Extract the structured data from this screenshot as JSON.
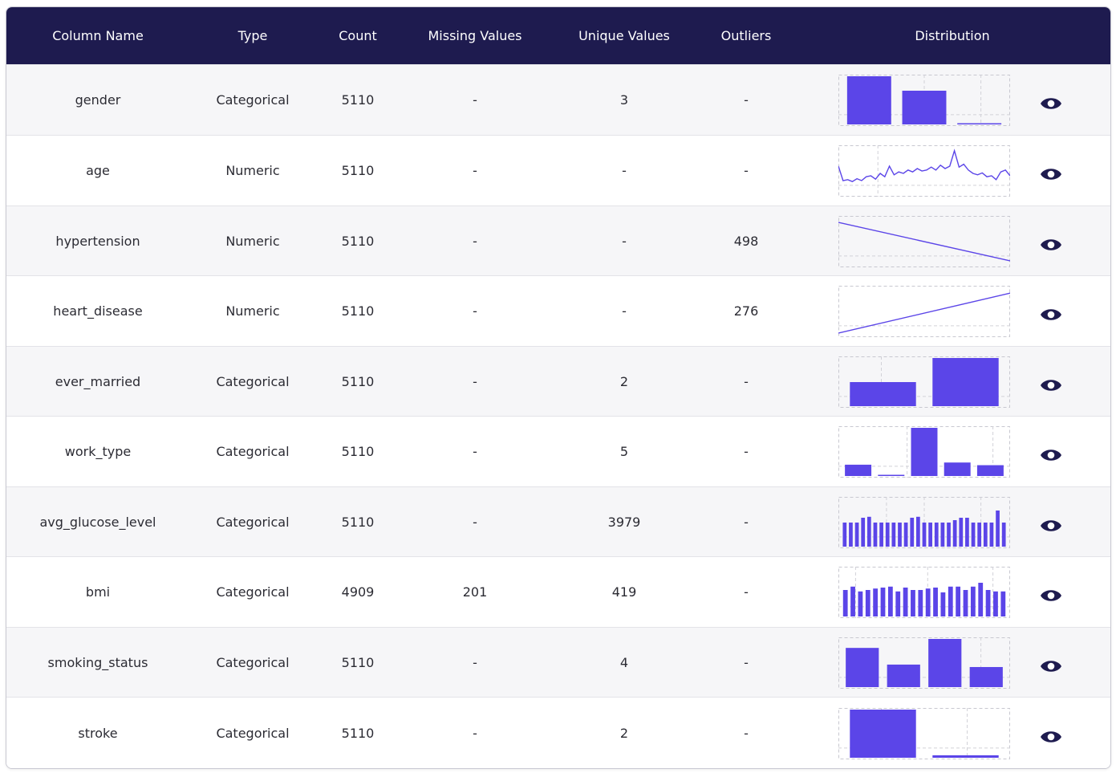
{
  "colors": {
    "header_bg": "#1e1b4f",
    "accent": "#5b45e8",
    "eye_icon": "#1e1b4f"
  },
  "columns": [
    "Column Name",
    "Type",
    "Count",
    "Missing Values",
    "Unique Values",
    "Outliers",
    "Distribution"
  ],
  "rows": [
    {
      "name": "gender",
      "type": "Categorical",
      "count": "5110",
      "missing": "-",
      "unique": "3",
      "outliers": "-",
      "dist": {
        "kind": "bar",
        "values": [
          3000,
          2100,
          1
        ],
        "gridx": [
          0.5,
          0.83
        ],
        "gridy": [
          0.78
        ]
      }
    },
    {
      "name": "age",
      "type": "Numeric",
      "count": "5110",
      "missing": "-",
      "unique": "-",
      "outliers": "-",
      "dist": {
        "kind": "line",
        "values": [
          60,
          30,
          32,
          28,
          34,
          30,
          38,
          40,
          33,
          45,
          38,
          60,
          42,
          48,
          45,
          52,
          48,
          55,
          50,
          52,
          58,
          52,
          62,
          55,
          60,
          92,
          58,
          64,
          52,
          45,
          42,
          46,
          38,
          40,
          32,
          48,
          52,
          40
        ],
        "ylim": [
          0,
          100
        ],
        "gridx": [
          0.23
        ],
        "gridy": [
          0.78
        ]
      }
    },
    {
      "name": "hypertension",
      "type": "Numeric",
      "count": "5110",
      "missing": "-",
      "unique": "-",
      "outliers": "498",
      "dist": {
        "kind": "line",
        "values": [
          0.9,
          0.1
        ],
        "ylim": [
          0,
          1
        ],
        "gridx": [],
        "gridy": [
          0.78
        ]
      }
    },
    {
      "name": "heart_disease",
      "type": "Numeric",
      "count": "5110",
      "missing": "-",
      "unique": "-",
      "outliers": "276",
      "dist": {
        "kind": "line",
        "values": [
          0.05,
          0.88
        ],
        "ylim": [
          0,
          1
        ],
        "gridx": [],
        "gridy": [
          0.78
        ]
      }
    },
    {
      "name": "ever_married",
      "type": "Categorical",
      "count": "5110",
      "missing": "-",
      "unique": "2",
      "outliers": "-",
      "dist": {
        "kind": "bar",
        "values": [
          1700,
          3400
        ],
        "gridx": [
          0.25
        ],
        "gridy": [
          0.78
        ]
      }
    },
    {
      "name": "work_type",
      "type": "Categorical",
      "count": "5110",
      "missing": "-",
      "unique": "5",
      "outliers": "-",
      "dist": {
        "kind": "bar",
        "values": [
          687,
          22,
          2925,
          819,
          657
        ],
        "gridx": [
          0.4,
          0.9
        ],
        "gridy": [
          0.78
        ]
      }
    },
    {
      "name": "avg_glucose_level",
      "type": "Categorical",
      "count": "5110",
      "missing": "-",
      "unique": "3979",
      "outliers": "-",
      "dist": {
        "kind": "bar",
        "values": [
          0.5,
          0.5,
          0.5,
          0.6,
          0.62,
          0.5,
          0.5,
          0.5,
          0.5,
          0.5,
          0.5,
          0.6,
          0.62,
          0.5,
          0.5,
          0.5,
          0.5,
          0.5,
          0.55,
          0.6,
          0.6,
          0.5,
          0.5,
          0.5,
          0.5,
          0.75,
          0.5
        ],
        "ylim": [
          0,
          1
        ],
        "gridx": [
          0.28,
          0.5,
          0.83
        ],
        "gridy": [
          0.78
        ]
      }
    },
    {
      "name": "bmi",
      "type": "Categorical",
      "count": "4909",
      "missing": "201",
      "unique": "419",
      "outliers": "-",
      "dist": {
        "kind": "bar",
        "values": [
          0.55,
          0.62,
          0.52,
          0.55,
          0.58,
          0.6,
          0.62,
          0.52,
          0.6,
          0.55,
          0.55,
          0.58,
          0.6,
          0.5,
          0.62,
          0.62,
          0.55,
          0.62,
          0.7,
          0.55,
          0.52,
          0.52
        ],
        "ylim": [
          0,
          1
        ],
        "gridx": [
          0.1,
          0.52,
          0.9
        ],
        "gridy": [
          0.78
        ]
      }
    },
    {
      "name": "smoking_status",
      "type": "Categorical",
      "count": "5110",
      "missing": "-",
      "unique": "4",
      "outliers": "-",
      "dist": {
        "kind": "bar",
        "values": [
          1540,
          885,
          1892,
          789
        ],
        "gridx": [
          0.83
        ],
        "gridy": [
          0.78
        ]
      }
    },
    {
      "name": "stroke",
      "type": "Categorical",
      "count": "5110",
      "missing": "-",
      "unique": "2",
      "outliers": "-",
      "dist": {
        "kind": "bar",
        "values": [
          4861,
          249
        ],
        "gridx": [
          0.25,
          0.75
        ],
        "gridy": [
          0.78
        ]
      }
    }
  ]
}
